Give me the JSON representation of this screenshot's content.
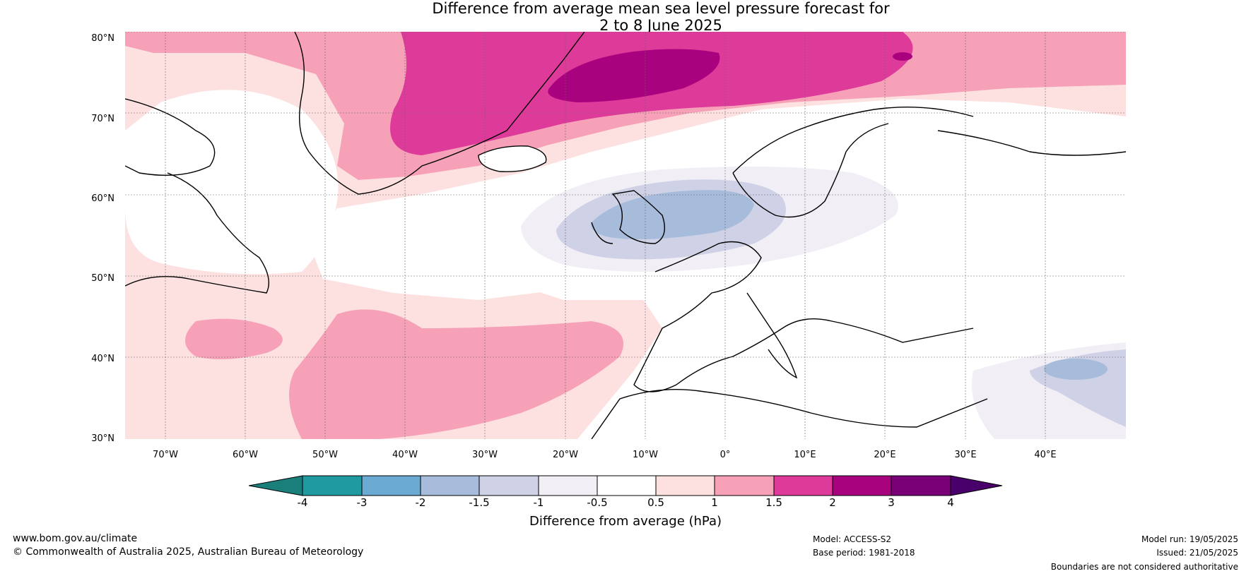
{
  "title_line1": "Difference from average mean sea level pressure forecast for",
  "title_line2": "2 to 8 June 2025",
  "lat_labels": [
    "80°N",
    "70°N",
    "60°N",
    "50°N",
    "40°N",
    "30°N"
  ],
  "lon_labels": [
    "70°W",
    "60°W",
    "50°W",
    "40°W",
    "30°W",
    "20°W",
    "10°W",
    "0°",
    "10°E",
    "20°E",
    "30°E",
    "40°E"
  ],
  "colorbar": {
    "ticks": [
      "-4",
      "-3",
      "-2",
      "-1.5",
      "-1",
      "-0.5",
      "0.5",
      "1",
      "1.5",
      "2",
      "3",
      "4"
    ],
    "colors": [
      "#1a7f7a",
      "#1e9aa0",
      "#6aaad3",
      "#a7bcdb",
      "#cfd1e6",
      "#f2eef6",
      "#ffffff",
      "#fde0e0",
      "#f7a1b8",
      "#dd3a9a",
      "#a8027e",
      "#7a0077",
      "#4a006b"
    ],
    "title": "Difference from average (hPa)"
  },
  "footer": {
    "website": "www.bom.gov.au/climate",
    "copyright": "© Commonwealth of Australia 2025, Australian Bureau of Meteorology",
    "model": "Model: ACCESS-S2",
    "base_period": "Base period: 1981-2018",
    "model_run": "Model run: 19/05/2025",
    "issued": "Issued: 21/05/2025",
    "disclaimer": "Boundaries are not considered authoritative"
  },
  "map": {
    "region": "North Atlantic and Europe",
    "lat_range": [
      30,
      80
    ],
    "lon_range": [
      -75,
      50
    ],
    "background_color": "#ffffff"
  }
}
